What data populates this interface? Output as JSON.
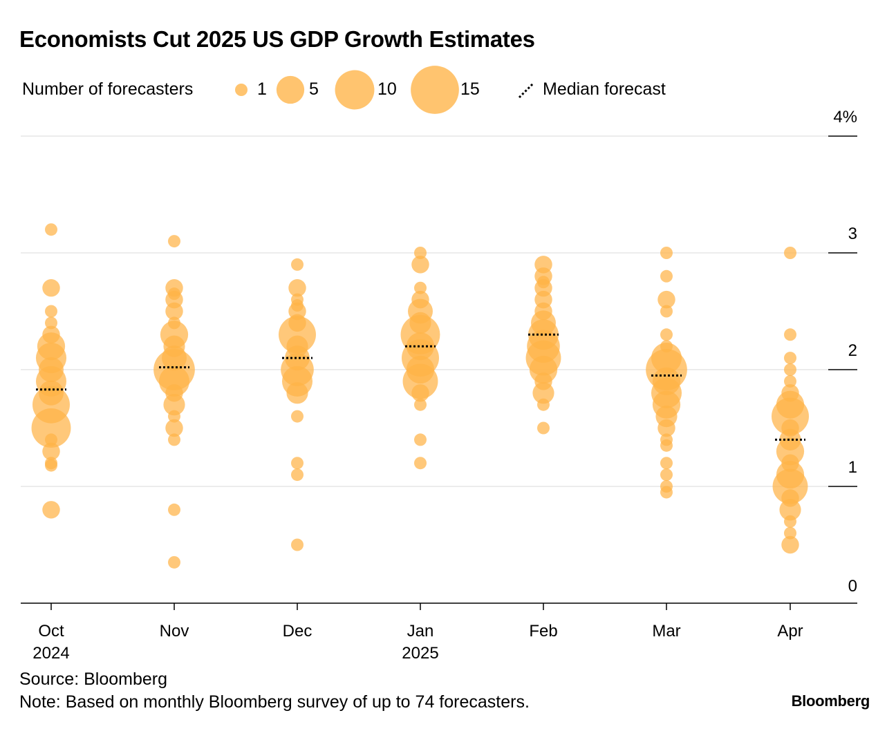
{
  "chart_data": {
    "type": "scatter",
    "title": "Economists Cut 2025 US GDP Growth Estimates",
    "legend": {
      "size_label": "Number of forecasters",
      "sizes": [
        {
          "count": 1,
          "label": "1"
        },
        {
          "count": 5,
          "label": "5"
        },
        {
          "count": 10,
          "label": "10"
        },
        {
          "count": 15,
          "label": "15"
        }
      ],
      "median_label": "Median forecast",
      "placement": "top-left"
    },
    "y_axis": {
      "ticks": [
        0,
        1,
        2,
        3,
        4
      ],
      "tick_labels": [
        "0",
        "1",
        "2",
        "3",
        "4%"
      ],
      "ylim": [
        0,
        4
      ],
      "side": "right"
    },
    "grid": true,
    "colors": {
      "bubble": "#FFB347",
      "median": "#000000",
      "grid": "#e6e6e6"
    },
    "months": [
      {
        "label": "Oct",
        "sublabel": "2024",
        "median": 1.83,
        "points": [
          [
            3.2,
            1
          ],
          [
            2.7,
            2
          ],
          [
            2.5,
            1
          ],
          [
            2.4,
            1
          ],
          [
            2.3,
            2
          ],
          [
            2.2,
            5
          ],
          [
            2.1,
            6
          ],
          [
            2.0,
            4
          ],
          [
            1.9,
            6
          ],
          [
            1.8,
            4
          ],
          [
            1.7,
            9
          ],
          [
            1.5,
            10
          ],
          [
            1.4,
            1
          ],
          [
            1.3,
            2
          ],
          [
            1.2,
            1
          ],
          [
            1.18,
            1
          ],
          [
            0.8,
            2
          ]
        ]
      },
      {
        "label": "Nov",
        "sublabel": "",
        "median": 2.02,
        "points": [
          [
            3.1,
            1
          ],
          [
            2.7,
            2
          ],
          [
            2.65,
            1
          ],
          [
            2.6,
            2
          ],
          [
            2.5,
            2
          ],
          [
            2.4,
            1
          ],
          [
            2.3,
            5
          ],
          [
            2.2,
            3
          ],
          [
            2.1,
            4
          ],
          [
            2.0,
            11
          ],
          [
            1.9,
            6
          ],
          [
            1.8,
            2
          ],
          [
            1.7,
            3
          ],
          [
            1.6,
            1
          ],
          [
            1.5,
            2
          ],
          [
            1.4,
            1
          ],
          [
            0.8,
            1
          ],
          [
            0.35,
            1
          ]
        ]
      },
      {
        "label": "Dec",
        "sublabel": "",
        "median": 2.1,
        "points": [
          [
            2.9,
            1
          ],
          [
            2.7,
            2
          ],
          [
            2.6,
            1
          ],
          [
            2.55,
            1
          ],
          [
            2.5,
            2
          ],
          [
            2.4,
            2
          ],
          [
            2.3,
            9
          ],
          [
            2.2,
            3
          ],
          [
            2.1,
            4
          ],
          [
            2.0,
            7
          ],
          [
            1.9,
            6
          ],
          [
            1.8,
            3
          ],
          [
            1.6,
            1
          ],
          [
            1.2,
            1
          ],
          [
            1.1,
            1
          ],
          [
            0.5,
            1
          ]
        ]
      },
      {
        "label": "Jan",
        "sublabel": "2025",
        "median": 2.2,
        "points": [
          [
            3.0,
            1
          ],
          [
            2.9,
            2
          ],
          [
            2.7,
            1
          ],
          [
            2.6,
            2
          ],
          [
            2.5,
            4
          ],
          [
            2.4,
            3
          ],
          [
            2.3,
            10
          ],
          [
            2.2,
            5
          ],
          [
            2.1,
            9
          ],
          [
            2.0,
            5
          ],
          [
            1.9,
            8
          ],
          [
            1.8,
            2
          ],
          [
            1.7,
            1
          ],
          [
            1.4,
            1
          ],
          [
            1.2,
            1
          ]
        ]
      },
      {
        "label": "Feb",
        "sublabel": "",
        "median": 2.3,
        "points": [
          [
            2.9,
            2
          ],
          [
            2.8,
            2
          ],
          [
            2.75,
            1
          ],
          [
            2.7,
            2
          ],
          [
            2.6,
            2
          ],
          [
            2.5,
            2
          ],
          [
            2.4,
            4
          ],
          [
            2.3,
            6
          ],
          [
            2.2,
            7
          ],
          [
            2.1,
            8
          ],
          [
            2.0,
            5
          ],
          [
            1.9,
            2
          ],
          [
            1.8,
            3
          ],
          [
            1.7,
            1
          ],
          [
            1.5,
            1
          ]
        ]
      },
      {
        "label": "Mar",
        "sublabel": "",
        "median": 1.95,
        "points": [
          [
            3.0,
            1
          ],
          [
            2.8,
            1
          ],
          [
            2.6,
            2
          ],
          [
            2.5,
            1
          ],
          [
            2.3,
            1
          ],
          [
            2.2,
            1
          ],
          [
            2.1,
            6
          ],
          [
            2.0,
            11
          ],
          [
            1.9,
            5
          ],
          [
            1.8,
            6
          ],
          [
            1.7,
            5
          ],
          [
            1.6,
            3
          ],
          [
            1.5,
            2
          ],
          [
            1.4,
            1
          ],
          [
            1.35,
            1
          ],
          [
            1.2,
            1
          ],
          [
            1.1,
            1
          ],
          [
            1.0,
            1
          ],
          [
            0.95,
            1
          ]
        ]
      },
      {
        "label": "Apr",
        "sublabel": "",
        "median": 1.4,
        "points": [
          [
            3.0,
            1
          ],
          [
            2.3,
            1
          ],
          [
            2.1,
            1
          ],
          [
            2.0,
            1
          ],
          [
            1.9,
            1
          ],
          [
            1.8,
            2
          ],
          [
            1.7,
            5
          ],
          [
            1.6,
            9
          ],
          [
            1.5,
            2
          ],
          [
            1.4,
            3
          ],
          [
            1.3,
            5
          ],
          [
            1.2,
            2
          ],
          [
            1.1,
            5
          ],
          [
            1.0,
            8
          ],
          [
            0.9,
            2
          ],
          [
            0.8,
            3
          ],
          [
            0.7,
            1
          ],
          [
            0.6,
            1
          ],
          [
            0.5,
            2
          ]
        ]
      }
    ],
    "source": "Source: Bloomberg",
    "note": "Note: Based on monthly Bloomberg survey of up to 74 forecasters.",
    "brand": "Bloomberg"
  }
}
